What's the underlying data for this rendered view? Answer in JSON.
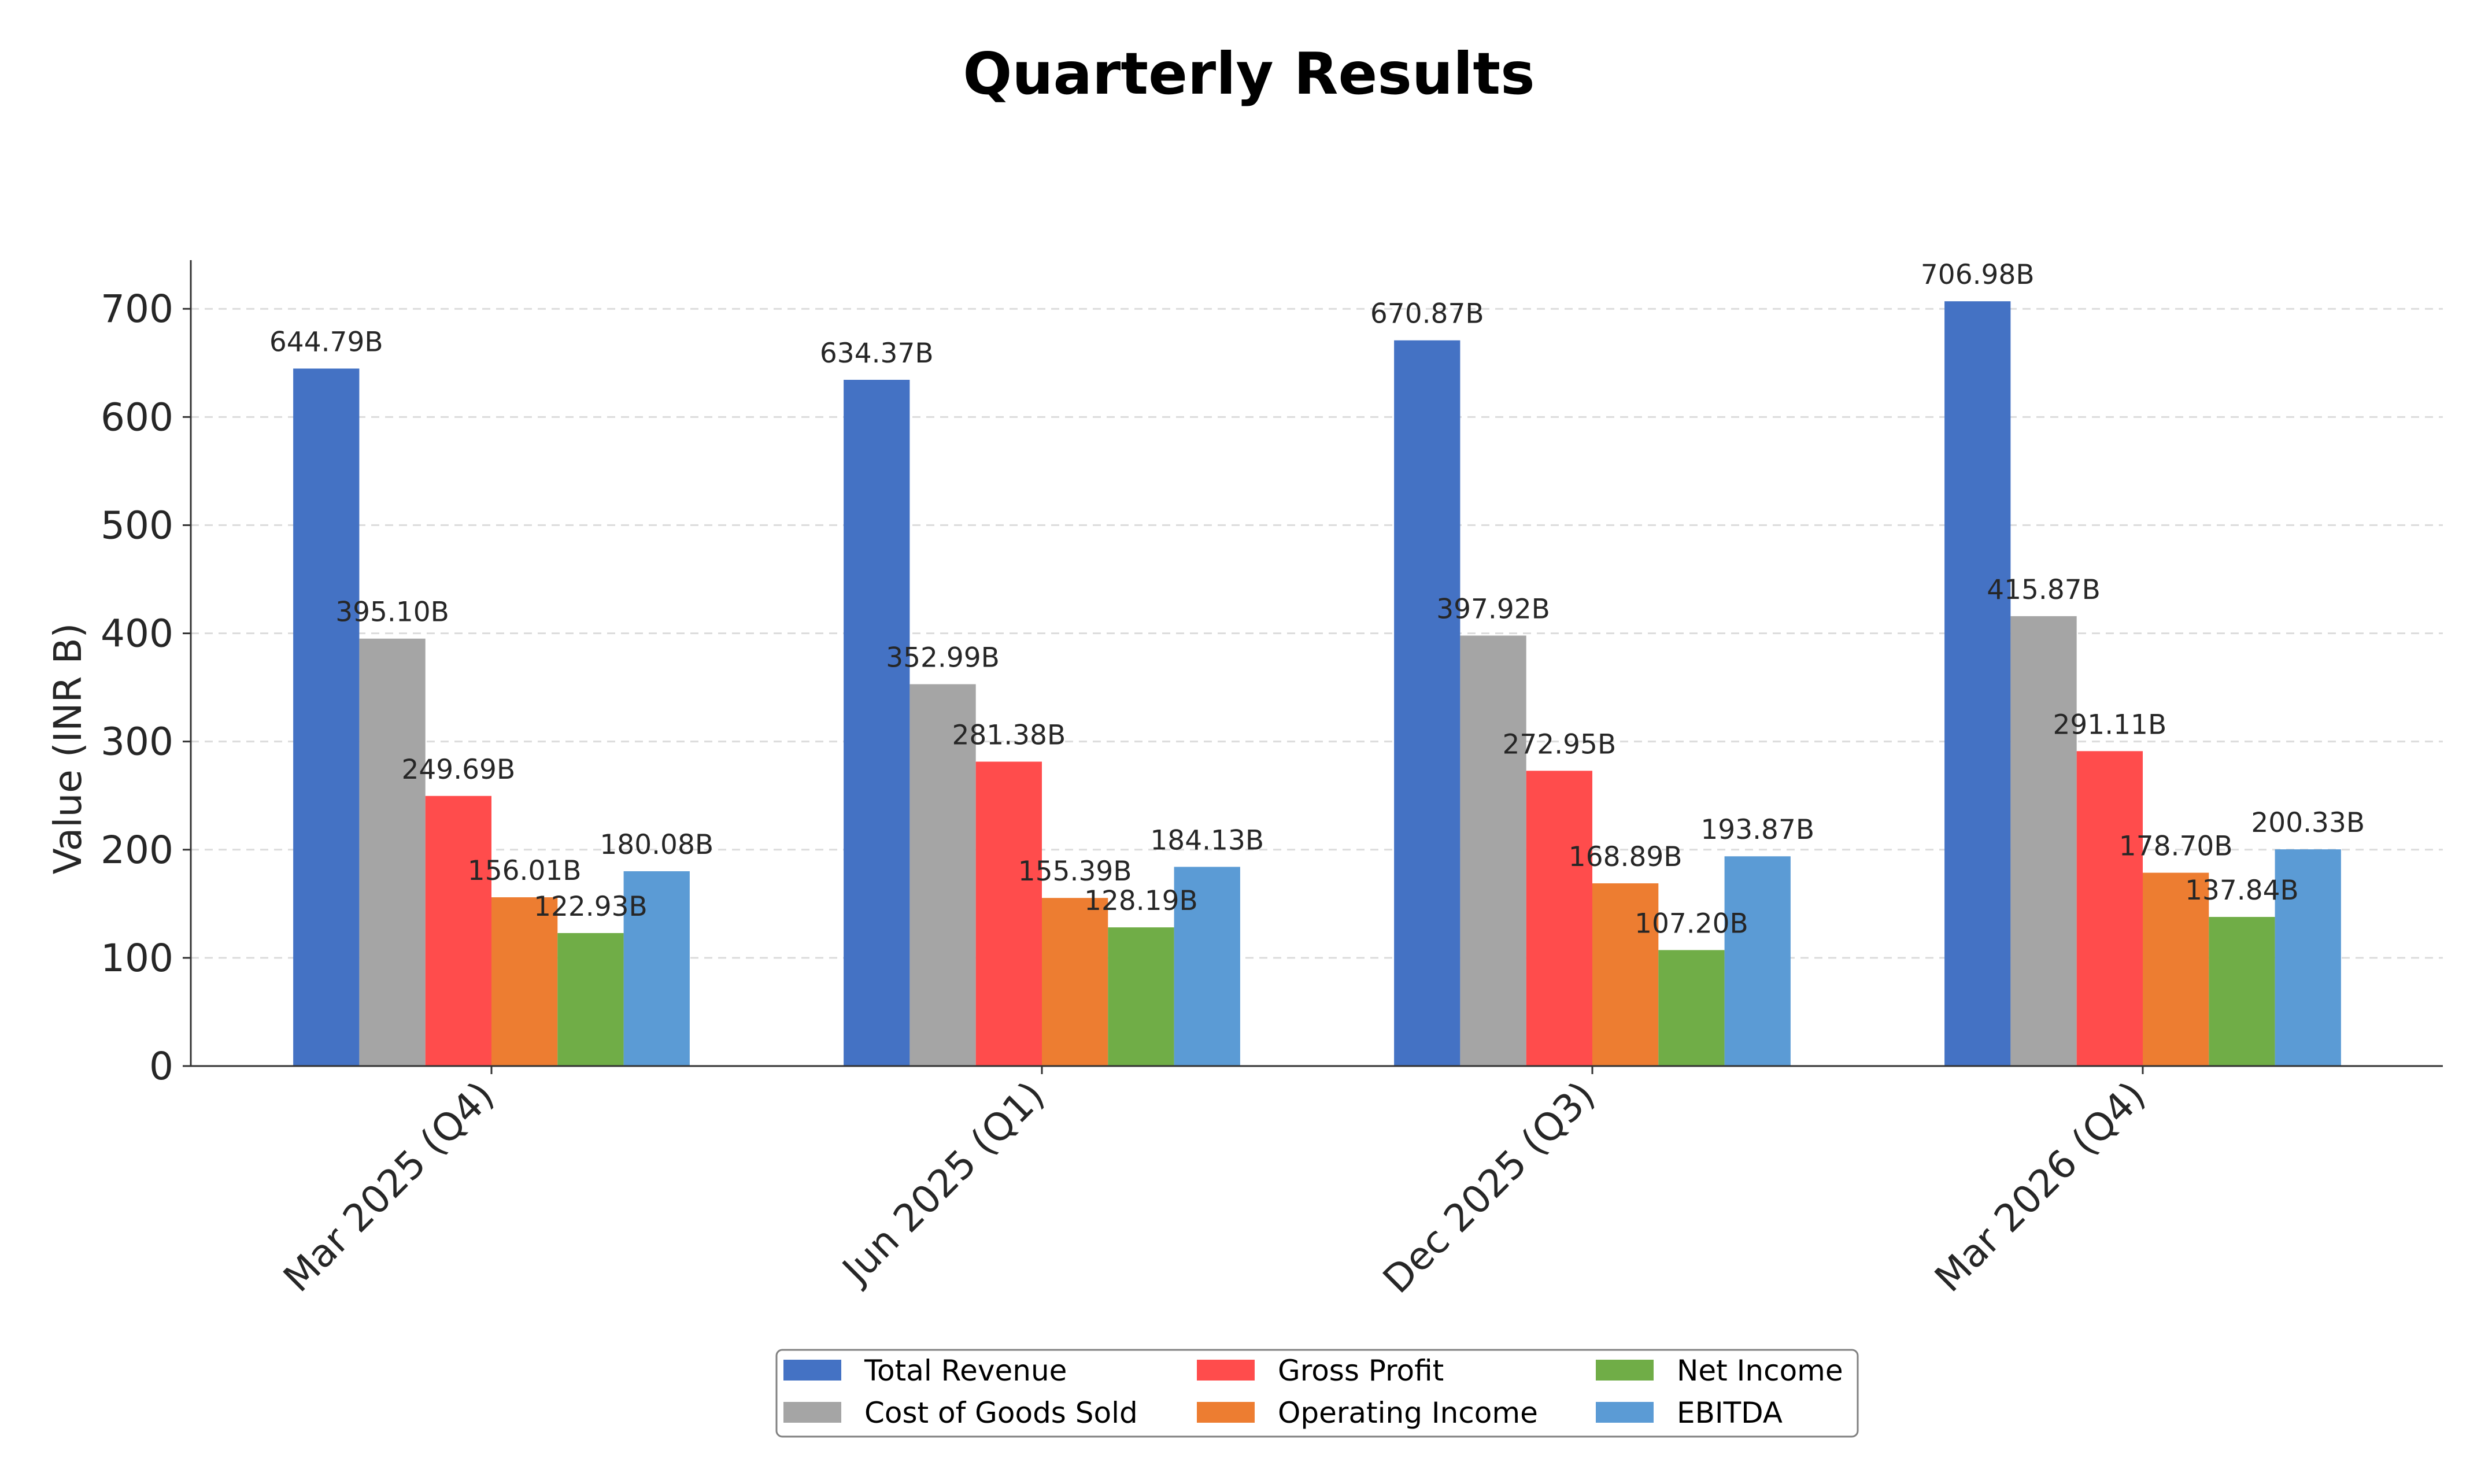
{
  "chart_data": {
    "type": "bar",
    "title": "Quarterly Results",
    "xlabel": "",
    "ylabel": "Value (INR B)",
    "ylim": [
      0,
      745
    ],
    "yticks": [
      "0",
      "100",
      "200",
      "300",
      "400",
      "500",
      "600",
      "700"
    ],
    "grid": "y-dashed",
    "legend_position": "bottom-center",
    "categories": [
      "Mar 2025 (Q4)",
      "Jun 2025 (Q1)",
      "Dec 2025 (Q3)",
      "Mar 2026 (Q4)"
    ],
    "series": [
      {
        "name": "Total Revenue",
        "color": "#4472C4",
        "values": [
          644.79,
          634.37,
          670.87,
          706.98
        ],
        "labels": [
          "644.79B",
          "634.37B",
          "670.87B",
          "706.98B"
        ]
      },
      {
        "name": "Cost of Goods Sold",
        "color": "#A5A5A5",
        "values": [
          395.1,
          352.99,
          397.92,
          415.87
        ],
        "labels": [
          "395.10B",
          "352.99B",
          "397.92B",
          "415.87B"
        ]
      },
      {
        "name": "Gross Profit",
        "color": "#FF4C4C",
        "values": [
          249.69,
          281.38,
          272.95,
          291.11
        ],
        "labels": [
          "249.69B",
          "281.38B",
          "272.95B",
          "291.11B"
        ]
      },
      {
        "name": "Operating Income",
        "color": "#ED7D31",
        "values": [
          156.01,
          155.39,
          168.89,
          178.7
        ],
        "labels": [
          "156.01B",
          "155.39B",
          "168.89B",
          "178.70B"
        ]
      },
      {
        "name": "Net Income",
        "color": "#70AD47",
        "values": [
          122.93,
          128.19,
          107.2,
          137.84
        ],
        "labels": [
          "122.93B",
          "128.19B",
          "107.20B",
          "137.84B"
        ]
      },
      {
        "name": "EBITDA",
        "color": "#5B9BD5",
        "values": [
          180.08,
          184.13,
          193.87,
          200.33
        ],
        "labels": [
          "180.08B",
          "184.13B",
          "193.87B",
          "200.33B"
        ]
      }
    ]
  }
}
